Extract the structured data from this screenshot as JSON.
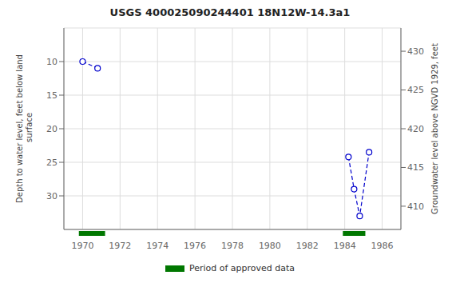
{
  "chart_data": {
    "type": "line",
    "title": "USGS 400025090244401 18N12W-14.3a1",
    "y_label": "Depth to water level, feet below land\n surface",
    "y2_label": "Groundwater level above NGVD 1929, feet",
    "xlim": [
      1969,
      1987
    ],
    "xticks": [
      1970,
      1972,
      1974,
      1976,
      1978,
      1980,
      1982,
      1984,
      1986
    ],
    "ylim": [
      35,
      5
    ],
    "yticks": [
      10,
      15,
      20,
      25,
      30
    ],
    "y2lim": [
      407,
      433
    ],
    "y2ticks": [
      410,
      415,
      420,
      425,
      430
    ],
    "grid": true,
    "series": [
      {
        "color": "#0000CC",
        "line_style": "dashed",
        "marker": "o",
        "x": [
          1970.0,
          1970.8
        ],
        "values": [
          10.0,
          11.0
        ]
      },
      {
        "color": "#0000CC",
        "line_style": "dashed",
        "marker": "o",
        "x": [
          1984.2,
          1984.5,
          1984.8,
          1985.3
        ],
        "values": [
          24.2,
          29.0,
          33.0,
          23.5
        ]
      }
    ],
    "periods": {
      "name": "Period of approved data",
      "color": "#007700",
      "ranges": [
        [
          1969.8,
          1971.2
        ],
        [
          1983.9,
          1985.1
        ]
      ]
    },
    "legend": "bottom"
  }
}
